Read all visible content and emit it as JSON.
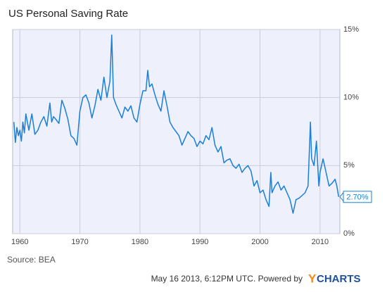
{
  "chart_data": {
    "type": "line",
    "title": "US Personal Saving Rate",
    "source": "Source: BEA",
    "footer": "May 16 2013, 6:12PM UTC. Powered by",
    "logo_y": "Y",
    "logo_rest": "CHARTS",
    "x": [
      1959,
      1959.25,
      1959.5,
      1959.75,
      1960,
      1960.25,
      1960.5,
      1960.75,
      1961,
      1961.5,
      1962,
      1962.5,
      1963,
      1963.5,
      1964,
      1964.5,
      1965,
      1965.3,
      1965.6,
      1966,
      1966.5,
      1967,
      1967.5,
      1968,
      1968.5,
      1969,
      1969.5,
      1970,
      1970.5,
      1971,
      1971.5,
      1972,
      1972.5,
      1973,
      1973.5,
      1974,
      1974.5,
      1975,
      1975.3,
      1975.6,
      1976,
      1976.5,
      1977,
      1977.5,
      1978,
      1978.5,
      1979,
      1979.5,
      1980,
      1980.5,
      1981,
      1981.3,
      1981.6,
      1982,
      1982.5,
      1983,
      1983.5,
      1984,
      1984.5,
      1985,
      1985.5,
      1986,
      1986.5,
      1987,
      1987.5,
      1988,
      1988.5,
      1989,
      1989.5,
      1990,
      1990.5,
      1991,
      1991.5,
      1992,
      1992.5,
      1993,
      1993.5,
      1994,
      1994.5,
      1995,
      1995.5,
      1996,
      1996.5,
      1997,
      1997.5,
      1998,
      1998.5,
      1999,
      1999.5,
      2000,
      2000.5,
      2001,
      2001.5,
      2001.8,
      2002,
      2002.5,
      2003,
      2003.5,
      2004,
      2004.5,
      2005,
      2005.5,
      2006,
      2006.5,
      2007,
      2007.5,
      2008,
      2008.4,
      2008.6,
      2009,
      2009.4,
      2009.8,
      2010,
      2010.5,
      2011,
      2011.5,
      2012,
      2012.5,
      2012.8,
      2013.1
    ],
    "series": [
      {
        "name": "US Personal Saving Rate",
        "color": "#1a7fd6",
        "values": [
          8.2,
          6.7,
          7.8,
          7.2,
          7.6,
          6.8,
          8.2,
          7.4,
          8.8,
          7.6,
          8.8,
          7.3,
          7.6,
          8.2,
          8.6,
          7.9,
          9.6,
          8.2,
          8.6,
          8.4,
          8.1,
          9.8,
          9.2,
          8.4,
          7.2,
          7.0,
          6.5,
          9.0,
          10.0,
          10.2,
          9.6,
          8.5,
          9.4,
          10.6,
          9.8,
          11.5,
          10.0,
          11.2,
          14.6,
          10.0,
          9.5,
          9.0,
          8.5,
          9.3,
          9.0,
          9.4,
          8.5,
          8.2,
          9.5,
          10.5,
          10.5,
          12.0,
          10.8,
          11.0,
          10.2,
          9.5,
          9.0,
          10.5,
          9.4,
          8.2,
          7.8,
          7.5,
          7.2,
          6.5,
          7.0,
          7.5,
          7.2,
          7.0,
          6.4,
          6.8,
          6.6,
          7.2,
          6.9,
          7.8,
          6.5,
          6.0,
          6.4,
          5.2,
          5.4,
          5.5,
          5.0,
          4.8,
          5.1,
          4.5,
          4.8,
          5.0,
          4.6,
          3.5,
          3.9,
          3.0,
          3.2,
          2.5,
          2.0,
          4.5,
          3.0,
          3.5,
          3.8,
          3.2,
          3.5,
          3.0,
          2.5,
          1.5,
          2.5,
          2.6,
          2.8,
          3.0,
          3.5,
          8.2,
          5.5,
          5.0,
          6.8,
          3.5,
          4.5,
          5.5,
          4.5,
          3.5,
          3.7,
          4.0,
          3.5,
          2.7
        ]
      }
    ],
    "last_value": {
      "value": 2.7,
      "label": "2.70%"
    },
    "xlim": [
      1958.8,
      2013.3
    ],
    "xticks": [
      1960,
      1970,
      1980,
      1990,
      2000,
      2010
    ],
    "ylim": [
      0,
      15
    ],
    "yticks": [
      {
        "value": 0,
        "label": "0%"
      },
      {
        "value": 5,
        "label": "5%"
      },
      {
        "value": 10,
        "label": "10%"
      },
      {
        "value": 15,
        "label": "15%"
      }
    ],
    "grid": true
  }
}
